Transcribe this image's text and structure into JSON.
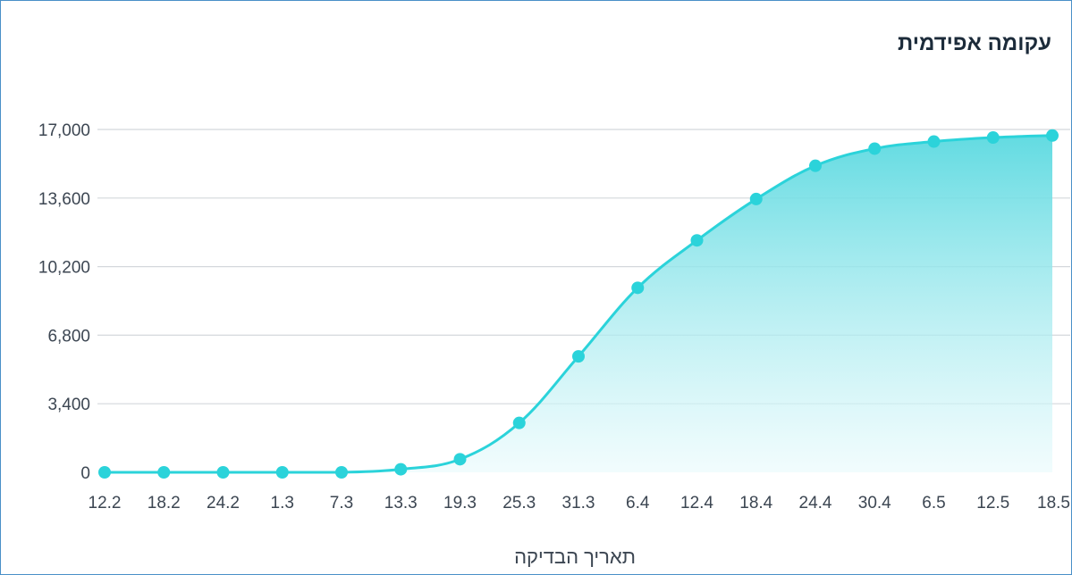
{
  "title": "עקומה אפידמית",
  "chart_data": {
    "type": "area",
    "title": "עקומה אפידמית",
    "xlabel": "תאריך הבדיקה",
    "ylabel": "",
    "ylim": [
      0,
      17000
    ],
    "yticks": [
      0,
      3400,
      6800,
      10200,
      13600,
      17000
    ],
    "ytick_labels": [
      "0",
      "3,400",
      "6,800",
      "10,200",
      "13,600",
      "17,000"
    ],
    "categories": [
      "12.2",
      "18.2",
      "24.2",
      "1.3",
      "7.3",
      "13.3",
      "19.3",
      "25.3",
      "31.3",
      "6.4",
      "12.4",
      "18.4",
      "24.4",
      "30.4",
      "6.5",
      "12.5",
      "18.5"
    ],
    "values": [
      0,
      0,
      0,
      0,
      0,
      150,
      650,
      2450,
      5750,
      9150,
      11500,
      13550,
      15200,
      16050,
      16400,
      16600,
      16700
    ],
    "grid": true,
    "legend": "none",
    "color": "#2bd3da"
  }
}
